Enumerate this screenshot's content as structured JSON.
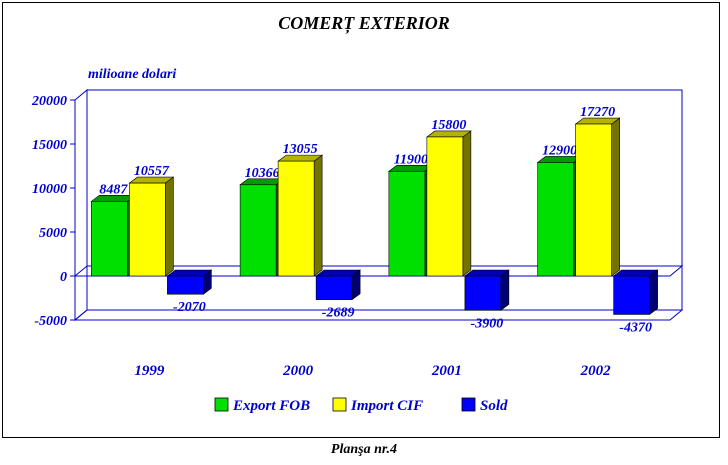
{
  "chart_data": {
    "type": "bar",
    "title": "COMERȚ EXTERIOR",
    "ylabel": "milioane dolari",
    "categories": [
      "1999",
      "2000",
      "2001",
      "2002"
    ],
    "series": [
      {
        "name": "Export FOB",
        "color": "#00e000",
        "values": [
          8487,
          10366,
          11900,
          12900
        ]
      },
      {
        "name": "Import CIF",
        "color": "#ffff00",
        "values": [
          10557,
          13055,
          15800,
          17270
        ]
      },
      {
        "name": "Sold",
        "color": "#0000ff",
        "values": [
          -2070,
          -2689,
          -3900,
          -4370
        ]
      }
    ],
    "ylim": [
      -5000,
      20000
    ],
    "yticks": [
      -5000,
      0,
      5000,
      10000,
      15000,
      20000
    ],
    "legend_position": "bottom",
    "grid": false
  },
  "footer": "Planşa nr.4"
}
